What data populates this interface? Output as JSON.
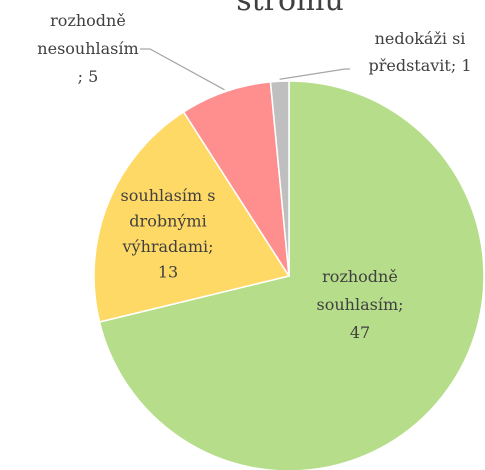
{
  "chart_data": {
    "type": "pie",
    "title": "stromu",
    "categories": [
      "rozhodně souhlasím",
      "souhlasím s drobnými výhradami",
      "rozhodně nesouhlasím",
      "nedokáži si představit"
    ],
    "values": [
      47,
      13,
      5,
      1
    ],
    "value_labels": [
      "rozhodně souhlasím; 47",
      "souhlasím s drobnými výhradami; 13",
      "rozhodně nesouhlasím; 5",
      "nedokáži si představit; 1"
    ],
    "colors": [
      "#b5dd8a",
      "#ffd966",
      "#ff8f8f",
      "#bfbfbf"
    ]
  }
}
